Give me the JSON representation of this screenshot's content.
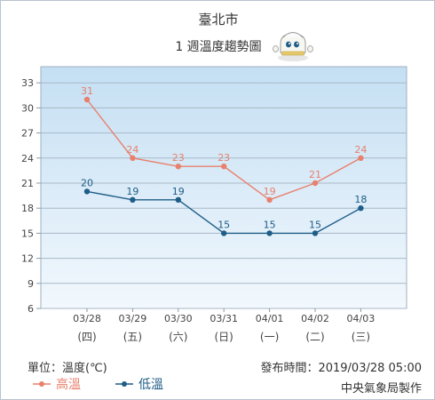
{
  "header": {
    "city": "臺北市",
    "subtitle": "1 週溫度趨勢圖"
  },
  "footer": {
    "unit_label": "單位：溫度(℃)",
    "published": "發布時間：2019/03/28 05:00",
    "agency": "中央氣象局製作"
  },
  "icons": {
    "mascot": "weather-mascot-icon"
  },
  "colors": {
    "high": "#e8806d",
    "low": "#1e5d87",
    "plot_top": "#c4dff3",
    "plot_bottom": "#f2f8fd"
  },
  "chart_data": {
    "type": "line",
    "categories": [
      "03/28",
      "03/29",
      "03/30",
      "03/31",
      "04/01",
      "04/02",
      "04/03"
    ],
    "weekdays": [
      "(四)",
      "(五)",
      "(六)",
      "(日)",
      "(一)",
      "(二)",
      "(三)"
    ],
    "series": [
      {
        "name": "高溫",
        "values": [
          31,
          24,
          23,
          23,
          19,
          21,
          24
        ]
      },
      {
        "name": "低溫",
        "values": [
          20,
          19,
          19,
          15,
          15,
          15,
          18
        ]
      }
    ],
    "yticks": [
      6,
      9,
      12,
      15,
      18,
      21,
      24,
      27,
      30,
      33
    ],
    "ylim": [
      6,
      35
    ],
    "grid": true,
    "legend": "bottom-left"
  }
}
